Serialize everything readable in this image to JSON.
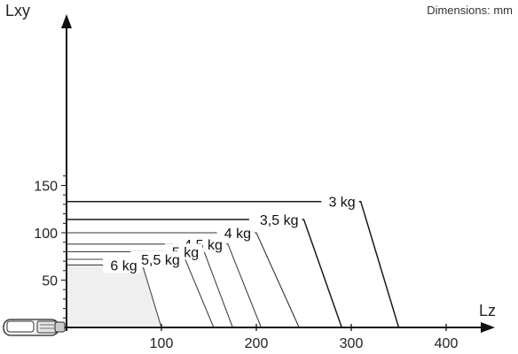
{
  "units_note": "Dimensions: mm",
  "chart_data": {
    "type": "line",
    "title": "",
    "xlabel": "Lz",
    "ylabel": "Lxy",
    "xlim": [
      0,
      440
    ],
    "ylim": [
      0,
      165
    ],
    "x_ticks": [
      100,
      200,
      300,
      400
    ],
    "y_ticks": [
      50,
      100,
      150
    ],
    "grid": false,
    "legend": "none",
    "series": [
      {
        "name": "3 kg",
        "points": [
          [
            0,
            133
          ],
          [
            310,
            133
          ],
          [
            350,
            0
          ]
        ],
        "line_color": "#1a1a1a"
      },
      {
        "name": "3,5 kg",
        "points": [
          [
            0,
            114
          ],
          [
            250,
            114
          ],
          [
            290,
            0
          ]
        ],
        "line_color": "#1a1a1a"
      },
      {
        "name": "4 kg",
        "points": [
          [
            0,
            100
          ],
          [
            200,
            100
          ],
          [
            245,
            0
          ]
        ],
        "line_color": "#333333"
      },
      {
        "name": "4,5 kg",
        "points": [
          [
            0,
            88
          ],
          [
            170,
            88
          ],
          [
            205,
            0
          ]
        ],
        "line_color": "#444444"
      },
      {
        "name": "5 kg",
        "points": [
          [
            0,
            80
          ],
          [
            145,
            80
          ],
          [
            175,
            0
          ]
        ],
        "line_color": "#444444"
      },
      {
        "name": "5,5 kg",
        "points": [
          [
            0,
            72
          ],
          [
            125,
            72
          ],
          [
            155,
            0
          ]
        ],
        "line_color": "#444444"
      },
      {
        "name": "6 kg",
        "points": [
          [
            0,
            66
          ],
          [
            80,
            66
          ],
          [
            100,
            0
          ]
        ],
        "line_color": "#444444",
        "fill": "#efefef"
      }
    ]
  }
}
